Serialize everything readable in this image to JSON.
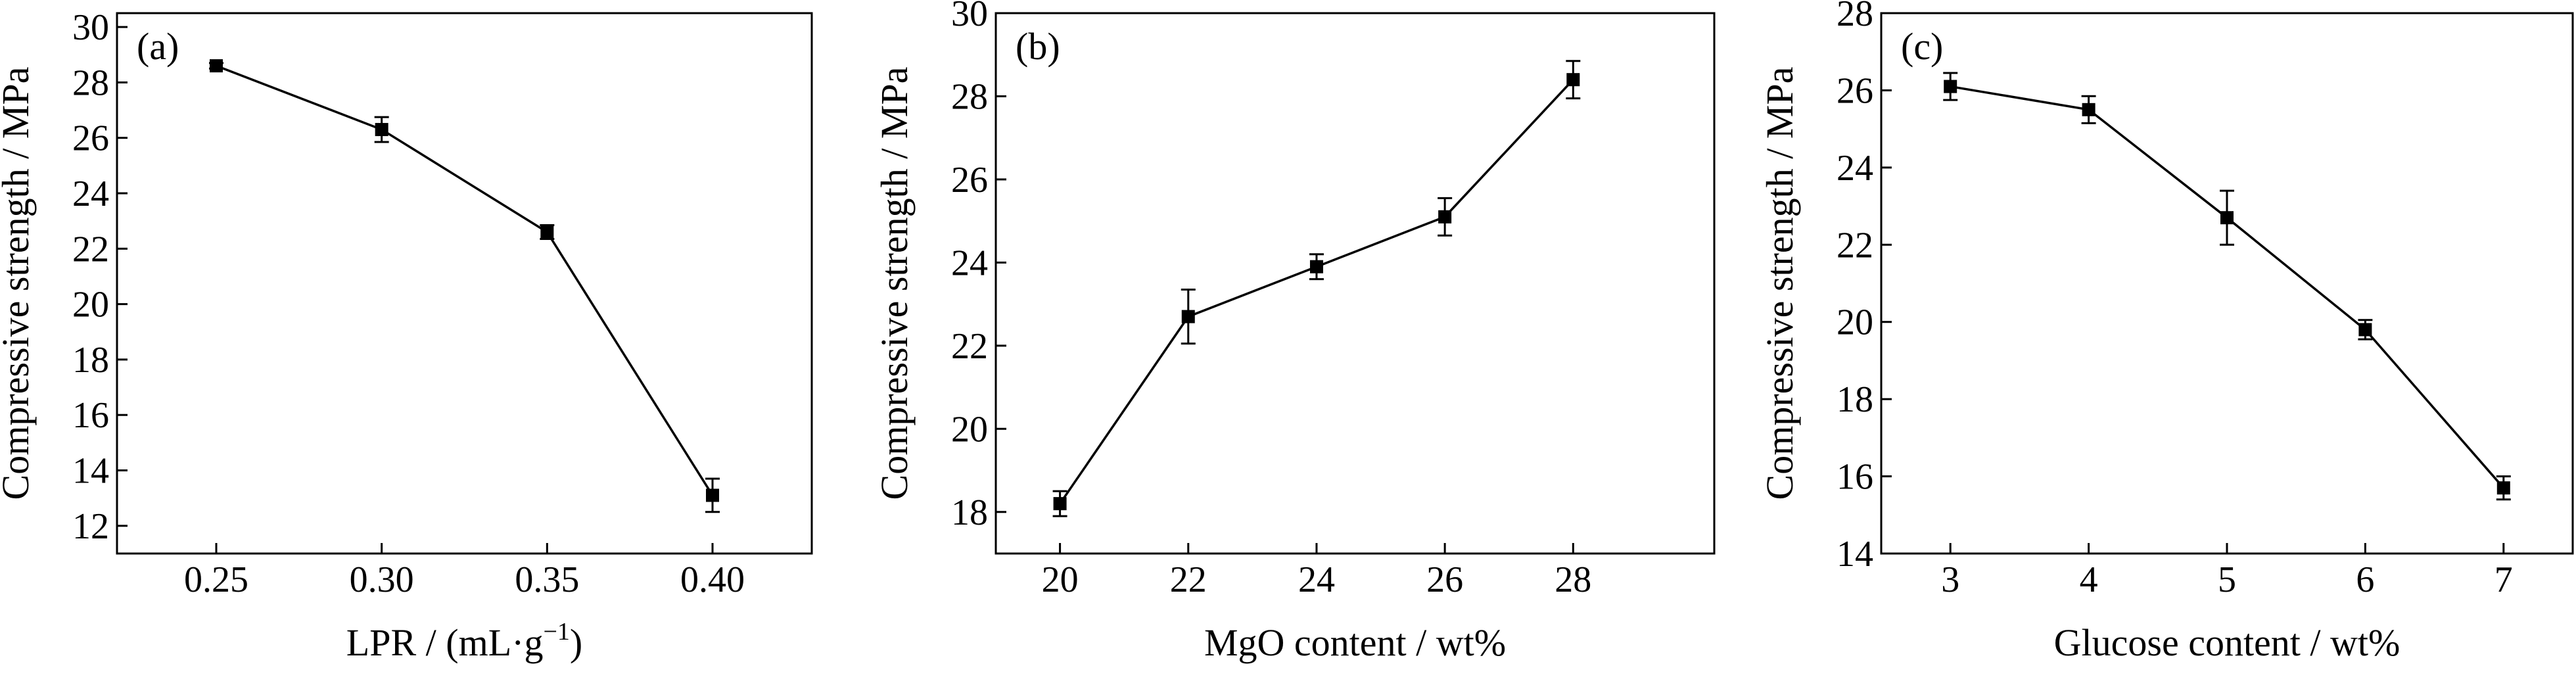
{
  "figure": {
    "panels": [
      {
        "tag": "(a)",
        "chart_data": {
          "type": "line",
          "xlabel": "LPR / (mL·g",
          "xlabel_sup": "−1",
          "xlabel_tail": ")",
          "ylabel": "Compressive strength / MPa",
          "xlim": [
            0.22,
            0.43
          ],
          "ylim": [
            11,
            30.5
          ],
          "xticks": [
            0.25,
            0.3,
            0.35,
            0.4
          ],
          "xtick_labels": [
            "0.25",
            "0.30",
            "0.35",
            "0.40"
          ],
          "yticks": [
            12,
            14,
            16,
            18,
            20,
            22,
            24,
            26,
            28,
            30
          ],
          "ytick_labels": [
            "12",
            "14",
            "16",
            "18",
            "20",
            "22",
            "24",
            "26",
            "28",
            "30"
          ],
          "x": [
            0.25,
            0.3,
            0.35,
            0.4
          ],
          "y": [
            28.6,
            26.3,
            22.6,
            13.1
          ],
          "yerr": [
            0.1,
            0.45,
            0.25,
            0.6
          ],
          "grid": false,
          "marker": "square",
          "color": "#000000"
        }
      },
      {
        "tag": "(b)",
        "chart_data": {
          "type": "line",
          "xlabel": "MgO content / wt%",
          "ylabel": "Compressive strength / MPa",
          "xlim": [
            19,
            30.2
          ],
          "ylim": [
            17,
            30
          ],
          "xticks": [
            20,
            22,
            24,
            26,
            28
          ],
          "xtick_labels": [
            "20",
            "22",
            "24",
            "26",
            "28"
          ],
          "yticks": [
            18,
            20,
            22,
            24,
            26,
            28,
            30
          ],
          "ytick_labels": [
            "18",
            "20",
            "22",
            "24",
            "26",
            "28",
            "30"
          ],
          "x": [
            20,
            22,
            24,
            26,
            28
          ],
          "y": [
            18.2,
            22.7,
            23.9,
            25.1,
            28.4
          ],
          "yerr": [
            0.3,
            0.65,
            0.3,
            0.45,
            0.45
          ],
          "grid": false,
          "marker": "square",
          "color": "#000000"
        }
      },
      {
        "tag": "(c)",
        "chart_data": {
          "type": "line",
          "xlabel": "Glucose content / wt%",
          "ylabel": "Compressive strength / MPa",
          "xlim": [
            2.5,
            7.5
          ],
          "ylim": [
            14,
            28
          ],
          "xticks": [
            3,
            4,
            5,
            6,
            7
          ],
          "xtick_labels": [
            "3",
            "4",
            "5",
            "6",
            "7"
          ],
          "yticks": [
            14,
            16,
            18,
            20,
            22,
            24,
            26,
            28
          ],
          "ytick_labels": [
            "14",
            "16",
            "18",
            "20",
            "22",
            "24",
            "26",
            "28"
          ],
          "x": [
            3,
            4,
            5,
            6,
            7
          ],
          "y": [
            26.1,
            25.5,
            22.7,
            19.8,
            15.7
          ],
          "yerr": [
            0.35,
            0.35,
            0.7,
            0.25,
            0.3
          ],
          "grid": false,
          "marker": "square",
          "color": "#000000"
        }
      }
    ]
  }
}
